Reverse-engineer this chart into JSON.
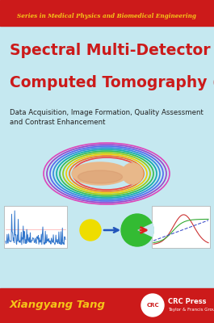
{
  "bg_color": "#c5e8f0",
  "top_bar_color": "#cc1a1a",
  "bottom_bar_color": "#cc1a1a",
  "series_text": "Series in Medical Physics and Biomedical Engineering",
  "series_color": "#f5c518",
  "series_fontsize": 5.2,
  "title_line1": "Spectral Multi-Detector",
  "title_line2": "Computed Tomography (sMDCT)",
  "title_color": "#cc1a1a",
  "title_fontsize": 13.5,
  "subtitle": "Data Acquisition, Image Formation, Quality Assessment\nand Contrast Enhancement",
  "subtitle_color": "#222222",
  "subtitle_fontsize": 6.2,
  "author": "Xiangyang Tang",
  "author_color": "#f5c518",
  "author_fontsize": 9.5,
  "crc_text": "CRC Press",
  "crc_sub": "Taylor & Francis Group",
  "ring_colors": [
    "#ee4444",
    "#ee7722",
    "#eecc00",
    "#99cc11",
    "#33bb55",
    "#11aaaa",
    "#3388dd",
    "#5566ee",
    "#9944cc",
    "#dd44bb"
  ],
  "yellow_color": "#eedd00",
  "green_color": "#33bb33",
  "arrow_color": "#2255bb",
  "red_arrow_color": "#dd2222"
}
